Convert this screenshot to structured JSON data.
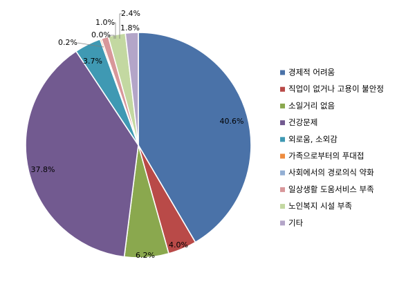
{
  "chart_data": {
    "type": "pie",
    "title": "",
    "start_angle_deg": 0,
    "direction": "clockwise",
    "legend_position": "right",
    "slices": [
      {
        "label": "경제적 어려움",
        "value": 40.6,
        "display": "40.6%",
        "color": "#4a72a8"
      },
      {
        "label": "직업이 없거나 고용이 불안정",
        "value": 4.0,
        "display": "4.0%",
        "color": "#b94a48"
      },
      {
        "label": "소일거리 없음",
        "value": 6.2,
        "display": "6.2%",
        "color": "#8aa84e"
      },
      {
        "label": "건강문제",
        "value": 37.8,
        "display": "37.8%",
        "color": "#725a90"
      },
      {
        "label": "외로움, 소외감",
        "value": 3.7,
        "display": "3.7%",
        "color": "#3f99b3"
      },
      {
        "label": "가족으로부터의 푸대접",
        "value": 0.2,
        "display": "0.2%",
        "color": "#ee8c3f"
      },
      {
        "label": "사회에서의 경로의식 약화",
        "value": 0.0,
        "display": "0.0%",
        "color": "#93afd3"
      },
      {
        "label": "일상생활 도움서비스 부족",
        "value": 1.0,
        "display": "1.0%",
        "color": "#d8979a"
      },
      {
        "label": "노인복지 시설 부족",
        "value": 2.4,
        "display": "2.4%",
        "color": "#c3d8a1"
      },
      {
        "label": "기타",
        "value": 1.8,
        "display": "1.8%",
        "color": "#b3a5c8"
      }
    ]
  }
}
